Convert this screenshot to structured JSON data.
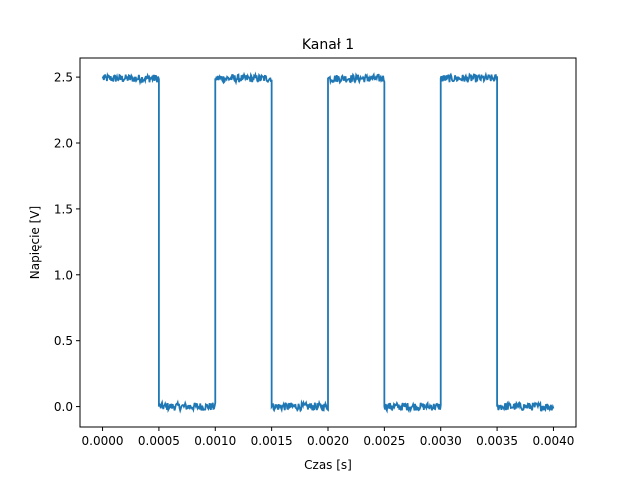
{
  "chart_data": {
    "type": "line",
    "title": "Kanał 1",
    "xlabel": "Czas [s]",
    "ylabel": "Napięcie [V]",
    "xlim": [
      -0.0002,
      0.0042
    ],
    "ylim": [
      -0.155,
      2.645
    ],
    "grid": false,
    "x_ticks": [
      0.0,
      0.0005,
      0.001,
      0.0015,
      0.002,
      0.0025,
      0.003,
      0.0035,
      0.004
    ],
    "x_tick_labels": [
      "0.0000",
      "0.0005",
      "0.0010",
      "0.0015",
      "0.0020",
      "0.0025",
      "0.0030",
      "0.0035",
      "0.0040"
    ],
    "y_ticks": [
      0.0,
      0.5,
      1.0,
      1.5,
      2.0,
      2.5
    ],
    "y_tick_labels": [
      "0.0",
      "0.5",
      "1.0",
      "1.5",
      "2.0",
      "2.5"
    ],
    "series": [
      {
        "color": "#1f77b4",
        "signal": "square wave",
        "high_level": 2.49,
        "low_level": 0.0,
        "noise_amplitude": 0.03,
        "x": [
          0.0,
          0.0005,
          0.0005,
          0.001,
          0.001,
          0.0015,
          0.0015,
          0.002,
          0.002,
          0.0025,
          0.0025,
          0.003,
          0.003,
          0.0035,
          0.0035,
          0.004
        ],
        "y": [
          2.49,
          2.49,
          0.0,
          0.0,
          2.49,
          2.49,
          0.0,
          0.0,
          2.49,
          2.49,
          0.0,
          0.0,
          2.49,
          2.49,
          0.0,
          0.0
        ]
      }
    ]
  }
}
